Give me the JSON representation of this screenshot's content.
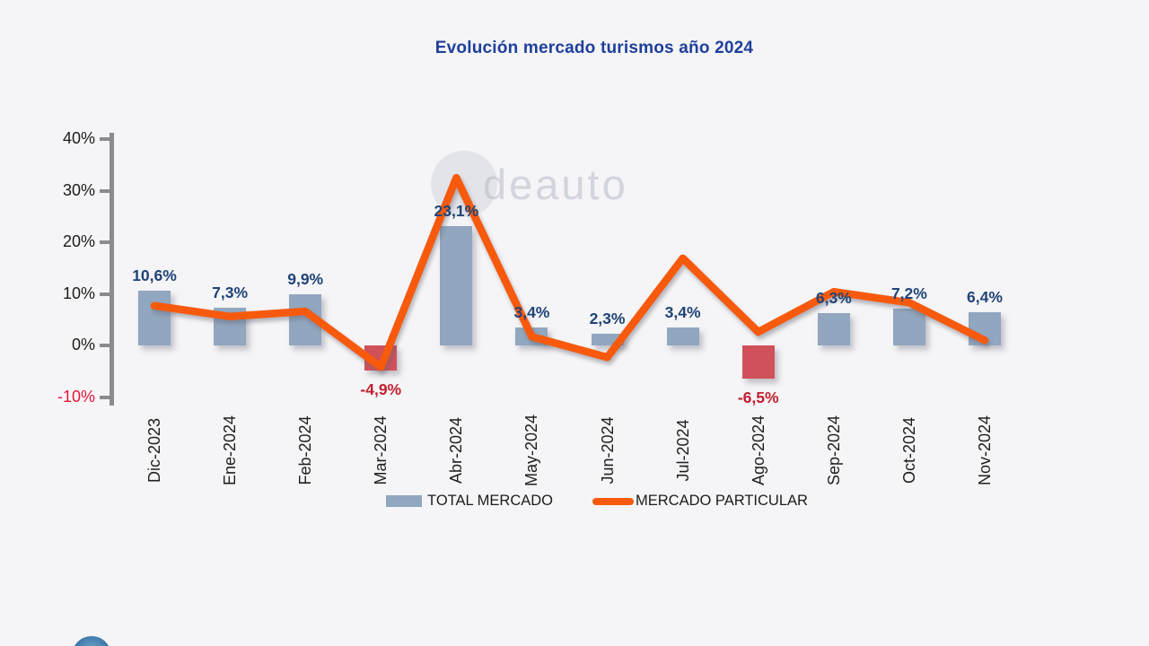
{
  "title": "Evolución mercado turismos año 2024",
  "legend": {
    "total_label": "TOTAL MERCADO",
    "particular_label": "MERCADO PARTICULAR"
  },
  "watermark_text": "deauto",
  "colors": {
    "background": "#f5f4f6",
    "bar_positive": "#91a6bf",
    "bar_negative": "#d0515a",
    "line": "#f75a0d",
    "title_text": "#1e3f9b",
    "label_positive": "#1f4477",
    "label_negative": "#c11f2e",
    "axis": "#8b8b8e",
    "ytick_text": "#1c1c1c",
    "ytick_negative_text": "#e31a38"
  },
  "chart_data": {
    "type": "bar",
    "title": "Evolución mercado turismos año 2024",
    "categories": [
      "Dic-2023",
      "Ene-2024",
      "Feb-2024",
      "Mar-2024",
      "Abr-2024",
      "May-2024",
      "Jun-2024",
      "Jul-2024",
      "Ago-2024",
      "Sep-2024",
      "Oct-2024",
      "Nov-2024"
    ],
    "series": [
      {
        "name": "TOTAL MERCADO",
        "type": "bar",
        "values": [
          10.6,
          7.3,
          9.9,
          -4.9,
          23.1,
          3.4,
          2.3,
          3.4,
          -6.5,
          6.3,
          7.2,
          6.4
        ],
        "labels": [
          "10,6%",
          "7,3%",
          "9,9%",
          "-4,9%",
          "23,1%",
          "3,4%",
          "2,3%",
          "3,4%",
          "-6,5%",
          "6,3%",
          "7,2%",
          "6,4%"
        ]
      },
      {
        "name": "MERCADO PARTICULAR",
        "type": "line",
        "values": [
          7.7,
          5.6,
          6.6,
          -4.2,
          32.5,
          1.7,
          -2.3,
          16.9,
          2.6,
          10.4,
          8.3,
          1.0
        ]
      }
    ],
    "y_axis": {
      "ticks": [
        {
          "label": "40%",
          "value": 40
        },
        {
          "label": "30%",
          "value": 30
        },
        {
          "label": "20%",
          "value": 20
        },
        {
          "label": "10%",
          "value": 10
        },
        {
          "label": "0%",
          "value": 0
        },
        {
          "label": "-10%",
          "value": -10
        }
      ],
      "ylim": [
        -10,
        40
      ]
    },
    "grid": false,
    "legend_position": "bottom"
  }
}
